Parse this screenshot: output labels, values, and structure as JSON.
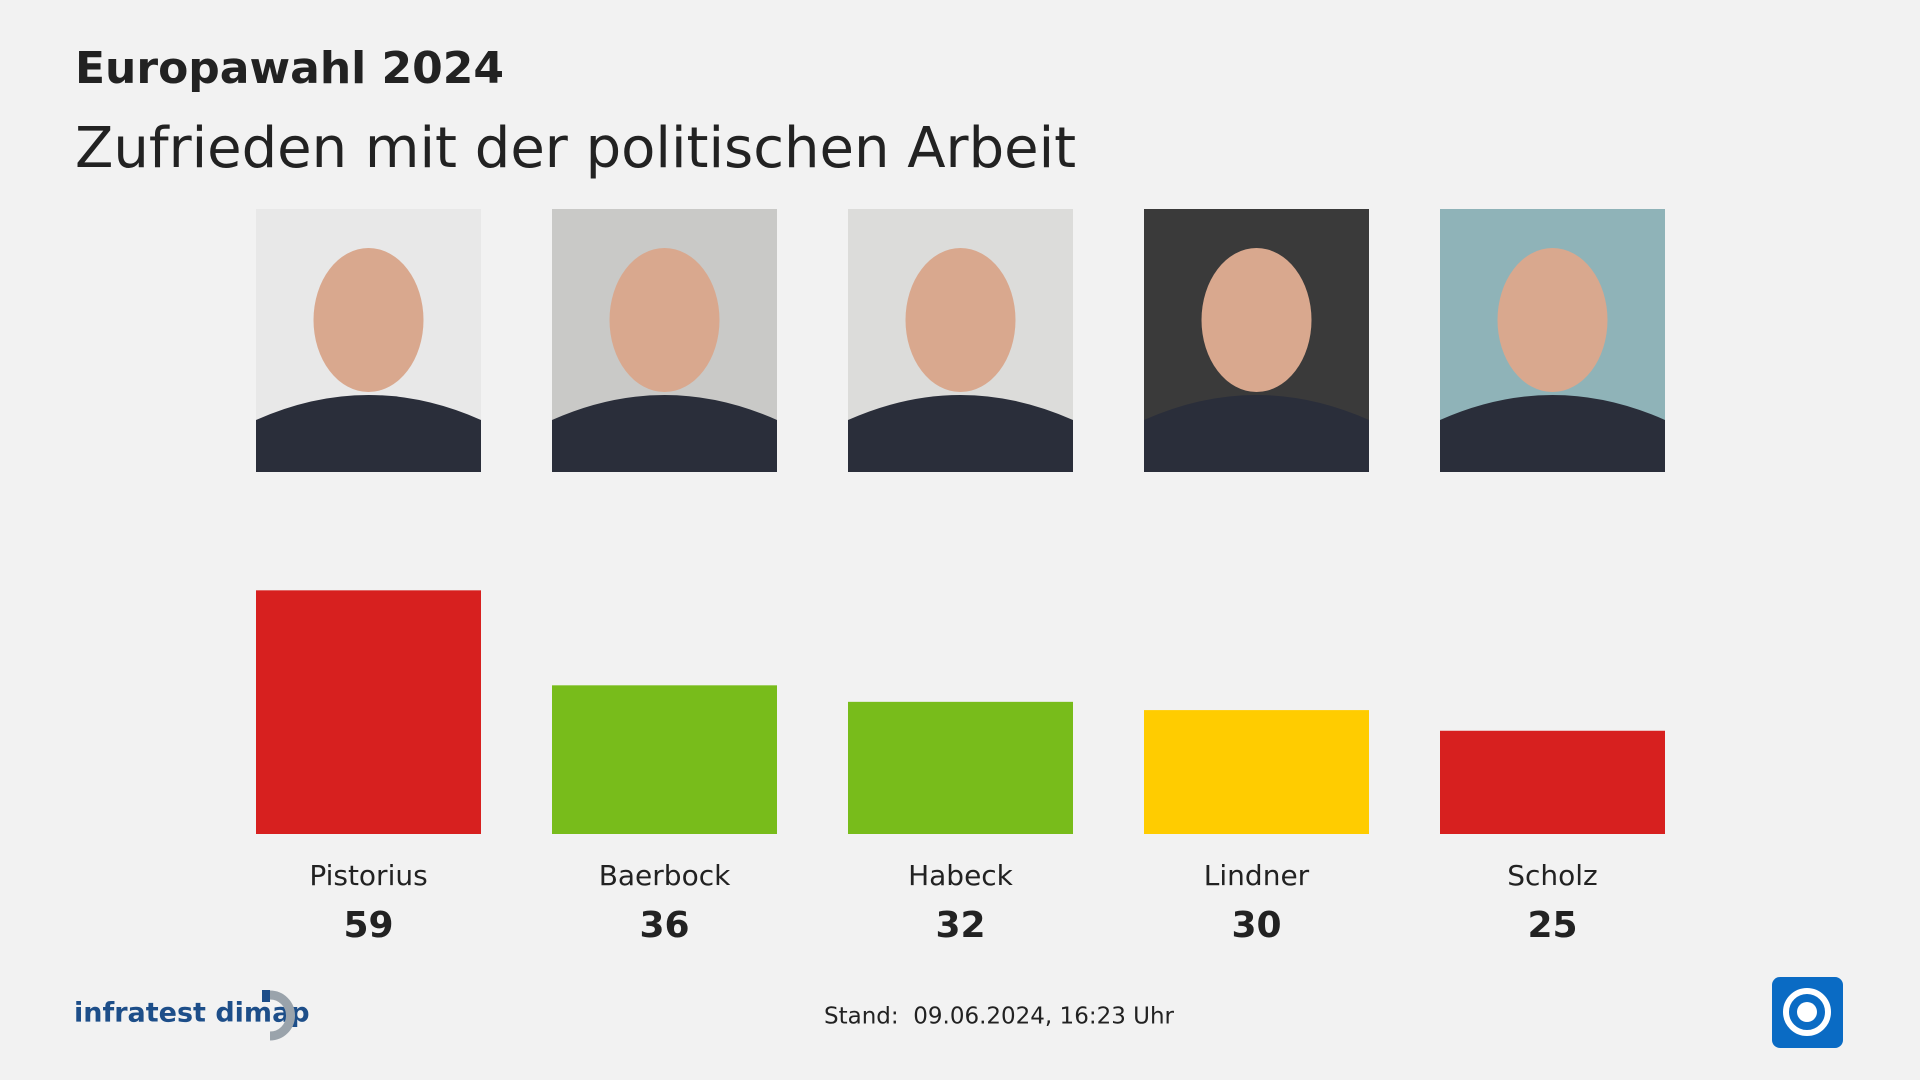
{
  "chart_data": {
    "type": "bar",
    "title": "Europawahl 2024",
    "subtitle": "Zufrieden mit der politischen Arbeit",
    "categories": [
      "Pistorius",
      "Baerbock",
      "Habeck",
      "Lindner",
      "Scholz"
    ],
    "values": [
      59,
      36,
      32,
      30,
      25
    ],
    "colors": [
      "#d7201f",
      "#78bc1b",
      "#78bc1b",
      "#ffcc00",
      "#d7201f"
    ],
    "source": "infratest dimap",
    "footnote": "Stand:  09.06.2024, 16:23 Uhr"
  }
}
